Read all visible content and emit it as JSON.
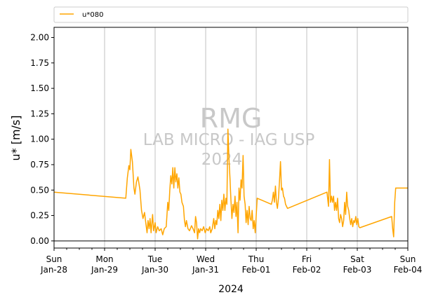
{
  "chart_data": {
    "type": "line",
    "xlabel": "2024",
    "ylabel": "u* [m/s]",
    "ylim": [
      -0.07,
      2.1
    ],
    "yticks": [
      "0.00",
      "0.25",
      "0.50",
      "0.75",
      "1.00",
      "1.25",
      "1.50",
      "1.75",
      "2.00"
    ],
    "xlim_days": [
      0,
      7
    ],
    "xticks": [
      {
        "day": "Sun",
        "date": "Jan-28"
      },
      {
        "day": "Mon",
        "date": "Jan-29"
      },
      {
        "day": "Tue",
        "date": "Jan-30"
      },
      {
        "day": "Wed",
        "date": "Jan-31"
      },
      {
        "day": "Thu",
        "date": "Feb-01"
      },
      {
        "day": "Fri",
        "date": "Feb-02"
      },
      {
        "day": "Sat",
        "date": "Feb-03"
      },
      {
        "day": "Sun",
        "date": "Feb-04"
      }
    ],
    "grid": "vertical",
    "hline": 0,
    "legend": "top, above plot",
    "watermark": [
      "RMG",
      "LAB MICRO - IAG USP",
      "2024"
    ],
    "series": [
      {
        "name": "u*080",
        "color": "#ffa500",
        "points": [
          [
            0.0,
            0.48
          ],
          [
            1.42,
            0.42
          ],
          [
            1.45,
            0.62
          ],
          [
            1.48,
            0.74
          ],
          [
            1.5,
            0.7
          ],
          [
            1.52,
            0.9
          ],
          [
            1.55,
            0.78
          ],
          [
            1.58,
            0.52
          ],
          [
            1.6,
            0.46
          ],
          [
            1.63,
            0.58
          ],
          [
            1.66,
            0.63
          ],
          [
            1.7,
            0.5
          ],
          [
            1.73,
            0.3
          ],
          [
            1.76,
            0.22
          ],
          [
            1.79,
            0.28
          ],
          [
            1.82,
            0.16
          ],
          [
            1.84,
            0.08
          ],
          [
            1.86,
            0.2
          ],
          [
            1.88,
            0.12
          ],
          [
            1.9,
            0.22
          ],
          [
            1.92,
            0.08
          ],
          [
            1.95,
            0.26
          ],
          [
            1.97,
            0.1
          ],
          [
            2.0,
            0.18
          ],
          [
            2.02,
            0.08
          ],
          [
            2.05,
            0.14
          ],
          [
            2.08,
            0.1
          ],
          [
            2.12,
            0.12
          ],
          [
            2.15,
            0.06
          ],
          [
            2.18,
            0.12
          ],
          [
            2.22,
            0.14
          ],
          [
            2.25,
            0.38
          ],
          [
            2.27,
            0.3
          ],
          [
            2.29,
            0.5
          ],
          [
            2.31,
            0.64
          ],
          [
            2.33,
            0.56
          ],
          [
            2.35,
            0.72
          ],
          [
            2.37,
            0.52
          ],
          [
            2.39,
            0.72
          ],
          [
            2.41,
            0.58
          ],
          [
            2.43,
            0.66
          ],
          [
            2.45,
            0.52
          ],
          [
            2.47,
            0.62
          ],
          [
            2.49,
            0.48
          ],
          [
            2.51,
            0.46
          ],
          [
            2.53,
            0.38
          ],
          [
            2.56,
            0.34
          ],
          [
            2.58,
            0.2
          ],
          [
            2.6,
            0.14
          ],
          [
            2.62,
            0.2
          ],
          [
            2.65,
            0.12
          ],
          [
            2.68,
            0.1
          ],
          [
            2.72,
            0.15
          ],
          [
            2.75,
            0.12
          ],
          [
            2.78,
            0.08
          ],
          [
            2.8,
            0.24
          ],
          [
            2.82,
            0.18
          ],
          [
            2.84,
            0.02
          ],
          [
            2.86,
            0.12
          ],
          [
            2.88,
            0.08
          ],
          [
            2.9,
            0.12
          ],
          [
            2.93,
            0.1
          ],
          [
            2.96,
            0.14
          ],
          [
            2.99,
            0.08
          ],
          [
            3.02,
            0.12
          ],
          [
            3.05,
            0.1
          ],
          [
            3.08,
            0.14
          ],
          [
            3.1,
            0.08
          ],
          [
            3.13,
            0.12
          ],
          [
            3.16,
            0.22
          ],
          [
            3.18,
            0.12
          ],
          [
            3.2,
            0.2
          ],
          [
            3.22,
            0.16
          ],
          [
            3.24,
            0.3
          ],
          [
            3.26,
            0.22
          ],
          [
            3.28,
            0.36
          ],
          [
            3.3,
            0.2
          ],
          [
            3.32,
            0.4
          ],
          [
            3.34,
            0.3
          ],
          [
            3.36,
            0.46
          ],
          [
            3.38,
            0.3
          ],
          [
            3.4,
            0.42
          ],
          [
            3.42,
            0.36
          ],
          [
            3.44,
            1.1
          ],
          [
            3.46,
            0.82
          ],
          [
            3.48,
            0.62
          ],
          [
            3.5,
            0.4
          ],
          [
            3.52,
            0.22
          ],
          [
            3.54,
            0.36
          ],
          [
            3.56,
            0.28
          ],
          [
            3.58,
            0.44
          ],
          [
            3.6,
            0.24
          ],
          [
            3.62,
            0.38
          ],
          [
            3.64,
            0.08
          ],
          [
            3.66,
            0.52
          ],
          [
            3.68,
            0.4
          ],
          [
            3.7,
            0.6
          ],
          [
            3.72,
            0.52
          ],
          [
            3.74,
            0.84
          ],
          [
            3.76,
            0.44
          ],
          [
            3.78,
            0.36
          ],
          [
            3.8,
            0.18
          ],
          [
            3.82,
            0.3
          ],
          [
            3.84,
            0.16
          ],
          [
            3.86,
            0.34
          ],
          [
            3.88,
            0.22
          ],
          [
            3.9,
            0.2
          ],
          [
            3.92,
            0.3
          ],
          [
            3.94,
            0.12
          ],
          [
            3.96,
            0.2
          ],
          [
            3.98,
            0.08
          ],
          [
            4.02,
            0.42
          ],
          [
            4.3,
            0.36
          ],
          [
            4.32,
            0.4
          ],
          [
            4.34,
            0.48
          ],
          [
            4.36,
            0.38
          ],
          [
            4.38,
            0.54
          ],
          [
            4.4,
            0.38
          ],
          [
            4.42,
            0.32
          ],
          [
            4.44,
            0.42
          ],
          [
            4.46,
            0.58
          ],
          [
            4.48,
            0.78
          ],
          [
            4.5,
            0.5
          ],
          [
            4.52,
            0.52
          ],
          [
            4.54,
            0.44
          ],
          [
            4.56,
            0.42
          ],
          [
            4.58,
            0.36
          ],
          [
            4.6,
            0.34
          ],
          [
            4.62,
            0.32
          ],
          [
            5.4,
            0.48
          ],
          [
            5.43,
            0.34
          ],
          [
            5.45,
            0.8
          ],
          [
            5.47,
            0.38
          ],
          [
            5.49,
            0.44
          ],
          [
            5.51,
            0.38
          ],
          [
            5.53,
            0.44
          ],
          [
            5.55,
            0.3
          ],
          [
            5.57,
            0.38
          ],
          [
            5.59,
            0.3
          ],
          [
            5.61,
            0.42
          ],
          [
            5.63,
            0.22
          ],
          [
            5.65,
            0.18
          ],
          [
            5.67,
            0.26
          ],
          [
            5.69,
            0.22
          ],
          [
            5.71,
            0.14
          ],
          [
            5.73,
            0.2
          ],
          [
            5.75,
            0.38
          ],
          [
            5.77,
            0.26
          ],
          [
            5.79,
            0.48
          ],
          [
            5.81,
            0.34
          ],
          [
            5.83,
            0.3
          ],
          [
            5.85,
            0.22
          ],
          [
            5.87,
            0.16
          ],
          [
            5.89,
            0.22
          ],
          [
            5.91,
            0.14
          ],
          [
            5.93,
            0.2
          ],
          [
            5.95,
            0.18
          ],
          [
            5.97,
            0.24
          ],
          [
            5.99,
            0.16
          ],
          [
            6.01,
            0.22
          ],
          [
            6.03,
            0.14
          ],
          [
            6.05,
            0.13
          ],
          [
            6.68,
            0.24
          ],
          [
            6.7,
            0.12
          ],
          [
            6.72,
            0.04
          ],
          [
            6.74,
            0.38
          ],
          [
            6.76,
            0.52
          ],
          [
            7.0,
            0.52
          ]
        ]
      }
    ]
  }
}
